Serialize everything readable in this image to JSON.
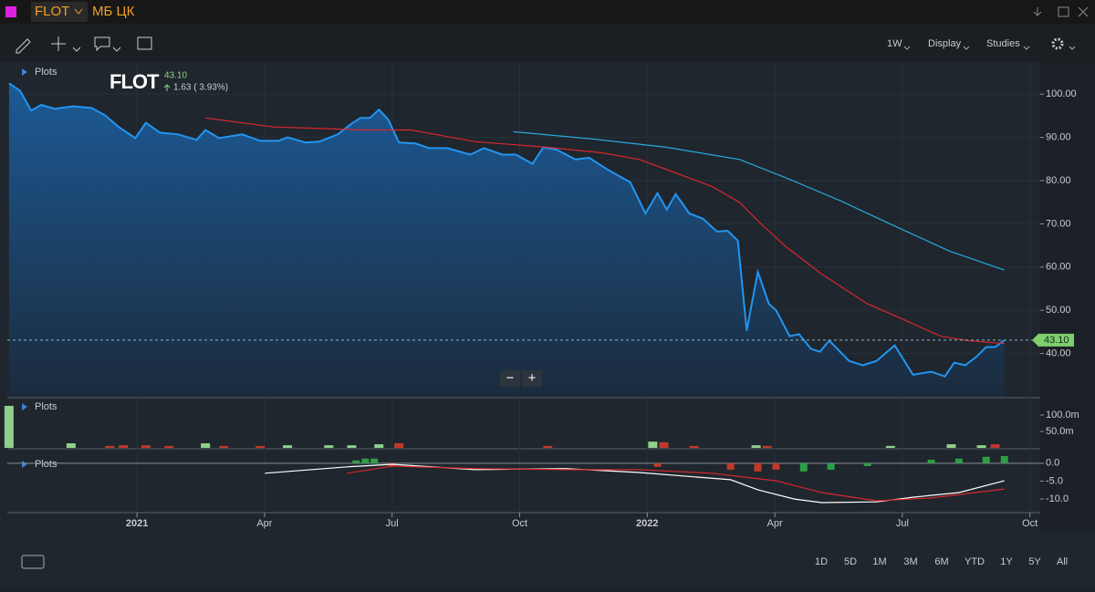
{
  "header": {
    "symbol": "FLOT",
    "exchange": "МБ ЦК"
  },
  "toolbar": {
    "interval": "1W",
    "display": "Display",
    "studies": "Studies"
  },
  "ranges": [
    "1D",
    "5D",
    "1M",
    "3M",
    "6M",
    "YTD",
    "1Y",
    "5Y",
    "All"
  ],
  "zoom": [
    "−",
    "+"
  ],
  "chart_data": [
    {
      "type": "line",
      "panel_label": "Plots",
      "quote": {
        "symbol": "FLOT",
        "last": {
          "value": 43.1,
          "label": "43.10"
        },
        "change": "1.63 ( 3.93%)"
      },
      "xlim": [
        -3.05,
        21.2
      ],
      "xticks": [
        {
          "value": 0,
          "label": "2021"
        },
        {
          "value": 3,
          "label": "Apr"
        },
        {
          "value": 6,
          "label": "Jul"
        },
        {
          "value": 9,
          "label": "Oct"
        },
        {
          "value": 12,
          "label": "2022"
        },
        {
          "value": 15,
          "label": "Apr"
        },
        {
          "value": 18,
          "label": "Jul"
        },
        {
          "value": 21,
          "label": "Oct"
        }
      ],
      "ylim": [
        30,
        107
      ],
      "yticks": [
        {
          "value": 40,
          "label": "40.00"
        },
        {
          "value": 50,
          "label": "50.00"
        },
        {
          "value": 60,
          "label": "60.00"
        },
        {
          "value": 70,
          "label": "70.00"
        },
        {
          "value": 80,
          "label": "80.00"
        },
        {
          "value": 90,
          "label": "90.00"
        },
        {
          "value": 100,
          "label": "100.00"
        }
      ],
      "grid": true,
      "series": [
        {
          "kind": "area",
          "color": "#2196f3",
          "x": [
            -3.01,
            -2.75,
            -2.49,
            -2.25,
            -1.93,
            -1.5,
            -1.07,
            -0.75,
            -0.43,
            -0.04,
            0.21,
            0.54,
            0.97,
            1.4,
            1.61,
            1.93,
            2.47,
            2.9,
            3.33,
            3.54,
            3.97,
            4.29,
            4.72,
            5.05,
            5.26,
            5.48,
            5.69,
            5.91,
            6.16,
            6.55,
            6.87,
            7.3,
            7.84,
            8.16,
            8.59,
            8.91,
            9.3,
            9.56,
            9.88,
            10.31,
            10.63,
            11.06,
            11.6,
            11.96,
            12.24,
            12.46,
            12.67,
            12.99,
            13.31,
            13.64,
            13.89,
            14.13,
            14.34,
            14.6,
            14.86,
            15.03,
            15.35,
            15.57,
            15.85,
            16.06,
            16.28,
            16.75,
            17.07,
            17.39,
            17.82,
            18.25,
            18.68,
            19.0,
            19.22,
            19.48,
            19.76,
            19.97,
            20.18,
            20.4
          ],
          "values": [
            102.5,
            100.8,
            96.2,
            97.5,
            96.6,
            97.2,
            96.8,
            95.1,
            92.4,
            89.8,
            93.4,
            91.1,
            90.7,
            89.4,
            91.7,
            89.8,
            90.7,
            89.2,
            89.2,
            90.0,
            88.8,
            89.0,
            90.7,
            93.2,
            94.5,
            94.5,
            96.4,
            94.1,
            88.8,
            88.6,
            87.5,
            87.5,
            86.0,
            87.5,
            86.0,
            86.0,
            83.9,
            87.7,
            87.1,
            84.9,
            85.3,
            82.6,
            79.6,
            72.4,
            77.1,
            73.3,
            76.9,
            72.4,
            71.2,
            68.2,
            68.4,
            66.1,
            45.3,
            58.9,
            51.5,
            50.0,
            44.0,
            44.5,
            41.1,
            40.4,
            43.0,
            38.3,
            37.3,
            38.3,
            41.9,
            35.1,
            35.8,
            34.7,
            37.9,
            37.3,
            39.4,
            41.5,
            41.5,
            43.1
          ]
        },
        {
          "kind": "line",
          "color": "#d8262f",
          "x": [
            1.61,
            3.22,
            5.37,
            6.44,
            7.95,
            9.66,
            10.95,
            11.81,
            12.67,
            13.53,
            14.17,
            14.6,
            15.25,
            16.1,
            17.18,
            18.04,
            18.9,
            19.54,
            20.4
          ],
          "values": [
            94.5,
            92.4,
            91.7,
            91.7,
            89.0,
            87.7,
            86.4,
            84.9,
            81.8,
            78.6,
            75.0,
            70.7,
            64.8,
            58.4,
            51.5,
            47.8,
            44.0,
            43.0,
            42.3
          ]
        },
        {
          "kind": "line",
          "color": "#29a8e0",
          "x": [
            8.85,
            10.74,
            12.46,
            14.17,
            15.25,
            16.53,
            17.82,
            19.11,
            20.4
          ],
          "values": [
            91.3,
            89.6,
            87.7,
            84.9,
            80.7,
            75.4,
            69.5,
            63.7,
            59.3
          ]
        }
      ]
    },
    {
      "type": "bar",
      "panel_label": "Plots",
      "xlim": [
        -3.05,
        21.2
      ],
      "ylim": [
        0,
        150000000
      ],
      "yticks": [
        {
          "value": 50000000,
          "label": "50.0m"
        },
        {
          "value": 100000000,
          "label": "100.0m"
        }
      ],
      "series": [
        {
          "color": "#8fd18a",
          "x": [
            -3.01,
            -1.55,
            1.61,
            3.54,
            4.51,
            5.05,
            5.69,
            12.13,
            14.56,
            17.72,
            19.15,
            19.86
          ],
          "values": [
            128000000,
            14000000,
            14000000,
            8000000,
            8000000,
            8000000,
            11000000,
            19000000,
            8000000,
            6000000,
            11000000,
            8000000
          ]
        },
        {
          "color": "#c0392b",
          "x": [
            -0.64,
            -0.32,
            0.21,
            0.75,
            2.04,
            2.9,
            6.16,
            9.66,
            12.39,
            13.1,
            14.82,
            20.18
          ],
          "values": [
            6000000,
            8000000,
            8000000,
            6000000,
            6000000,
            6000000,
            14000000,
            6000000,
            17000000,
            6000000,
            6000000,
            11000000
          ]
        }
      ]
    },
    {
      "type": "combo",
      "panel_label": "Plots",
      "xlim": [
        -3.05,
        21.2
      ],
      "ylim": [
        -13.3,
        2.0
      ],
      "yticks": [
        {
          "value": 0,
          "label": "0.0"
        },
        {
          "value": -5,
          "label": "-5.0"
        },
        {
          "value": -10,
          "label": "-10.0"
        }
      ],
      "series": [
        {
          "kind": "bar",
          "x": [
            5.15,
            5.37,
            5.58,
            6.01,
            12.24,
            13.96,
            14.6,
            15.03,
            15.68,
            16.32,
            17.18,
            18.68,
            19.33,
            19.97,
            20.4
          ],
          "values": [
            0.8,
            1.3,
            1.3,
            -0.8,
            -1.0,
            -1.8,
            -2.3,
            -1.8,
            -2.3,
            -1.8,
            -0.8,
            1.0,
            1.3,
            1.8,
            2.0
          ],
          "colors": [
            "#2e9e47",
            "#2e9e47",
            "#2e9e47",
            "#c0392b",
            "#c0392b",
            "#c0392b",
            "#c0392b",
            "#c0392b",
            "#2e9e47",
            "#2e9e47",
            "#2e9e47",
            "#2e9e47",
            "#2e9e47",
            "#2e9e47",
            "#2e9e47"
          ]
        },
        {
          "kind": "line",
          "color": "#ffffff",
          "x": [
            3.01,
            4.94,
            6.01,
            7.95,
            10.09,
            11.81,
            13.96,
            14.6,
            15.46,
            16.1,
            17.39,
            18.25,
            19.33,
            20.4
          ],
          "values": [
            -2.8,
            -1.0,
            -0.3,
            -1.8,
            -1.5,
            -2.6,
            -4.6,
            -7.4,
            -10.0,
            -11.0,
            -10.8,
            -9.5,
            -8.2,
            -4.9
          ]
        },
        {
          "kind": "line",
          "color": "#d8262f",
          "x": [
            4.94,
            6.01,
            7.95,
            10.09,
            11.81,
            13.53,
            15.03,
            16.1,
            17.39,
            18.68,
            20.4
          ],
          "values": [
            -2.8,
            -0.8,
            -1.5,
            -1.8,
            -1.8,
            -2.8,
            -4.9,
            -8.2,
            -10.5,
            -9.7,
            -7.2
          ]
        }
      ]
    }
  ]
}
